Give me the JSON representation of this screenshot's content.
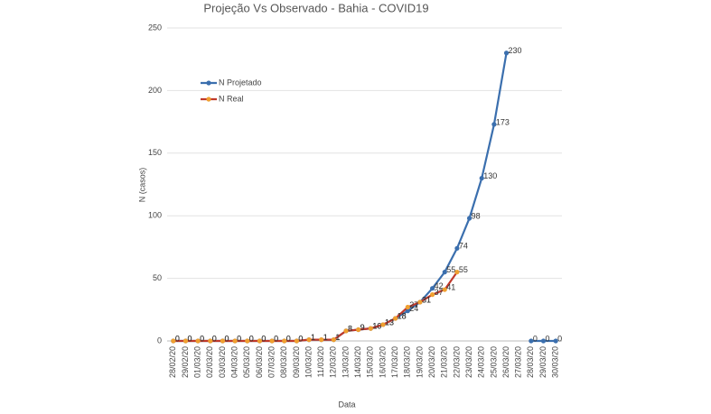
{
  "chart_data": {
    "type": "line",
    "title": "Projeção Vs Observado - Bahia - COVID19",
    "xlabel": "Data",
    "ylabel": "N (casos)",
    "categories": [
      "28/02/20",
      "29/02/20",
      "01/03/20",
      "02/03/20",
      "03/03/20",
      "04/03/20",
      "05/03/20",
      "06/03/20",
      "07/03/20",
      "08/03/20",
      "09/03/20",
      "10/03/20",
      "11/03/20",
      "12/03/20",
      "13/03/20",
      "14/03/20",
      "15/03/20",
      "16/03/20",
      "17/03/20",
      "18/03/20",
      "19/03/20",
      "20/03/20",
      "21/03/20",
      "22/03/20",
      "23/03/20",
      "24/03/20",
      "25/03/20",
      "26/03/20",
      "27/03/20",
      "28/03/20",
      "29/03/20",
      "30/03/20"
    ],
    "series": [
      {
        "name": "N Projetado",
        "color": "#3b6fae",
        "marker_color": "#3b6fae",
        "values": [
          0,
          0,
          0,
          0,
          0,
          0,
          0,
          0,
          0,
          0,
          0,
          1,
          1,
          1,
          8,
          9,
          10,
          13,
          18,
          24,
          31,
          42,
          55,
          74,
          98,
          130,
          173,
          230,
          null,
          0,
          0,
          0
        ]
      },
      {
        "name": "N Real",
        "color": "#c0392b",
        "marker_color": "#f0a030",
        "values": [
          0,
          0,
          0,
          0,
          0,
          0,
          0,
          0,
          0,
          0,
          0,
          1,
          1,
          1,
          8,
          9,
          10,
          13,
          18,
          27,
          31,
          37,
          41,
          55,
          null,
          null,
          null,
          null,
          null,
          null,
          null,
          null
        ]
      }
    ],
    "ylim": [
      0,
      250
    ],
    "yticks": [
      0,
      50,
      100,
      150,
      200,
      250
    ],
    "grid": true,
    "legend": "upper left"
  }
}
